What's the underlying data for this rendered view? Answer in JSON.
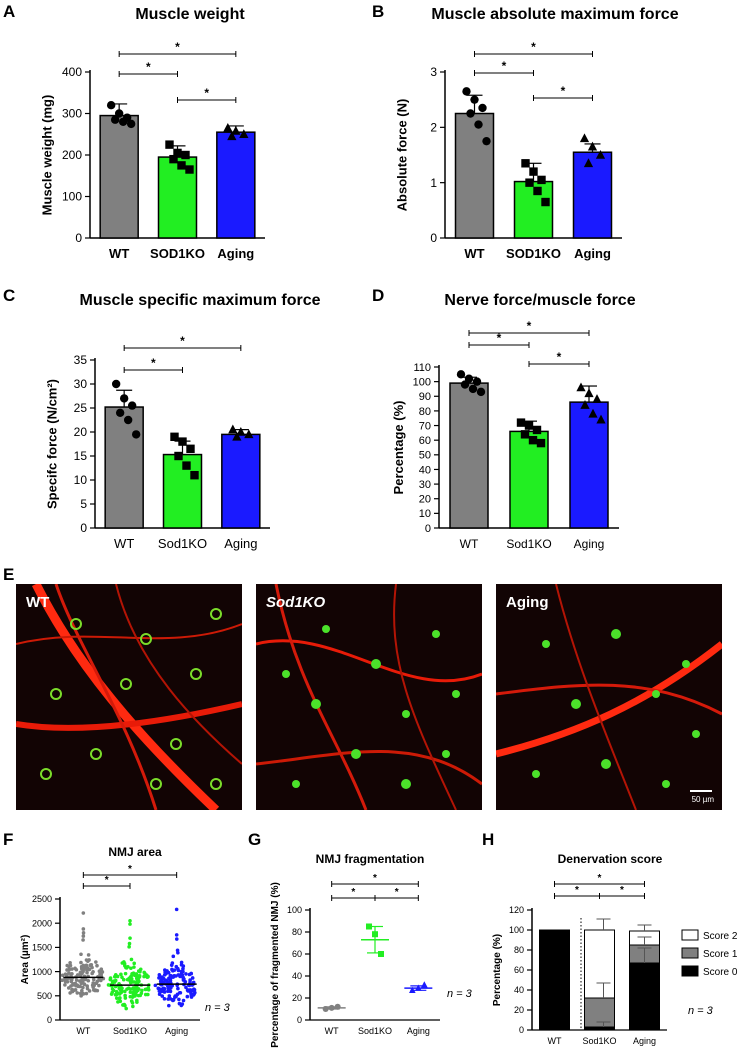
{
  "panels": {
    "A": {
      "label": "A",
      "title": "Muscle weight"
    },
    "B": {
      "label": "B",
      "title": "Muscle absolute maximum force"
    },
    "C": {
      "label": "C",
      "title": "Muscle specific maximum force"
    },
    "D": {
      "label": "D",
      "title": "Nerve force/muscle force"
    },
    "E": {
      "label": "E",
      "images": [
        {
          "label": "WT"
        },
        {
          "label": "Sod1KO"
        },
        {
          "label": "Aging"
        }
      ],
      "scale_bar": "50 µm"
    },
    "F": {
      "label": "F",
      "title": "NMJ area",
      "n": "n = 3"
    },
    "G": {
      "label": "G",
      "title": "NMJ fragmentation",
      "n": "n = 3"
    },
    "H": {
      "label": "H",
      "title": "Denervation score",
      "n": "n = 3"
    }
  },
  "colors": {
    "WT": "#808080",
    "SOD1KO": "#22ee22",
    "Aging": "#1a1aff",
    "gray_score": "#808080"
  },
  "chart_data": [
    {
      "id": "A",
      "type": "bar",
      "title": "Muscle weight",
      "categories": [
        "WT",
        "SOD1KO",
        "Aging"
      ],
      "values": [
        295,
        195,
        255
      ],
      "errors": [
        28,
        27,
        15
      ],
      "points": [
        [
          320,
          300,
          290,
          285,
          280,
          275
        ],
        [
          225,
          205,
          200,
          190,
          175,
          165
        ],
        [
          265,
          258,
          250,
          245
        ]
      ],
      "markers": [
        "circle",
        "square",
        "triangle"
      ],
      "ylabel": "Muscle weight (mg)",
      "ylim": [
        0,
        400
      ],
      "yticks": [
        0,
        100,
        200,
        300,
        400
      ],
      "sig": [
        {
          "from": 0,
          "to": 1,
          "label": "*"
        },
        {
          "from": 1,
          "to": 2,
          "label": "*"
        },
        {
          "from": 0,
          "to": 2,
          "label": "*"
        }
      ]
    },
    {
      "id": "B",
      "type": "bar",
      "title": "Muscle absolute maximum force",
      "categories": [
        "WT",
        "SOD1KO",
        "Aging"
      ],
      "values": [
        2.25,
        1.02,
        1.55
      ],
      "errors": [
        0.33,
        0.33,
        0.15
      ],
      "points": [
        [
          2.65,
          2.5,
          2.35,
          2.25,
          2.05,
          1.75
        ],
        [
          1.35,
          1.2,
          1.05,
          1.0,
          0.85,
          0.65
        ],
        [
          1.8,
          1.65,
          1.5,
          1.35
        ]
      ],
      "markers": [
        "circle",
        "square",
        "triangle"
      ],
      "ylabel": "Absolute force (N)",
      "ylim": [
        0,
        3
      ],
      "yticks": [
        0,
        1,
        2,
        3
      ],
      "sig": [
        {
          "from": 0,
          "to": 1,
          "label": "*"
        },
        {
          "from": 1,
          "to": 2,
          "label": "*"
        },
        {
          "from": 0,
          "to": 2,
          "label": "*"
        }
      ]
    },
    {
      "id": "C",
      "type": "bar",
      "title": "Muscle specific maximum force",
      "categories": [
        "WT",
        "Sod1KO",
        "Aging"
      ],
      "values": [
        25.2,
        15.3,
        19.5
      ],
      "errors": [
        3.5,
        2.8,
        1.0
      ],
      "points": [
        [
          30,
          27,
          25.5,
          24,
          22.5,
          19.5
        ],
        [
          19,
          18,
          16.5,
          15,
          13,
          11
        ],
        [
          20.5,
          20,
          19.5,
          19
        ]
      ],
      "markers": [
        "circle",
        "square",
        "triangle"
      ],
      "ylabel": "Specifc force (N/cm²)",
      "ylim": [
        0,
        35
      ],
      "yticks": [
        0,
        5,
        10,
        15,
        20,
        25,
        30,
        35
      ],
      "sig": [
        {
          "from": 0,
          "to": 1,
          "label": "*"
        },
        {
          "from": 0,
          "to": 2,
          "label": "*"
        }
      ]
    },
    {
      "id": "D",
      "type": "bar",
      "title": "Nerve force/muscle force",
      "categories": [
        "WT",
        "Sod1KO",
        "Aging"
      ],
      "values": [
        99,
        66,
        86
      ],
      "errors": [
        4,
        7,
        11
      ],
      "points": [
        [
          105,
          102,
          100,
          98,
          95,
          93
        ],
        [
          72,
          70,
          67,
          64,
          60,
          58
        ],
        [
          96,
          92,
          88,
          84,
          78,
          74
        ]
      ],
      "markers": [
        "circle",
        "square",
        "triangle"
      ],
      "ylabel": "Percentage (%)",
      "ylim": [
        0,
        110
      ],
      "yticks": [
        0,
        10,
        20,
        30,
        40,
        50,
        60,
        70,
        80,
        90,
        100,
        110
      ],
      "sig": [
        {
          "from": 0,
          "to": 1,
          "label": "*"
        },
        {
          "from": 1,
          "to": 2,
          "label": "*"
        },
        {
          "from": 0,
          "to": 2,
          "label": "*"
        }
      ]
    },
    {
      "id": "F",
      "type": "scatter",
      "title": "NMJ area",
      "categories": [
        "WT",
        "Sod1KO",
        "Aging"
      ],
      "medians": [
        880,
        720,
        740
      ],
      "ylabel": "Area (µm²)",
      "ylim": [
        0,
        2500
      ],
      "yticks": [
        0,
        500,
        1000,
        1500,
        2000,
        2500
      ],
      "sig": [
        {
          "from": 0,
          "to": 1,
          "label": "*"
        },
        {
          "from": 0,
          "to": 2,
          "label": "*"
        }
      ]
    },
    {
      "id": "G",
      "type": "scatter",
      "title": "NMJ fragmentation",
      "categories": [
        "WT",
        "Sod1KO",
        "Aging"
      ],
      "means": [
        11,
        73,
        29
      ],
      "errors": [
        1,
        12,
        2
      ],
      "points": [
        [
          10,
          11,
          12
        ],
        [
          85,
          78,
          60
        ],
        [
          27,
          29,
          32
        ]
      ],
      "markers": [
        "circle",
        "square",
        "triangle"
      ],
      "ylabel": "Percentage of fragmented NMJ (%)",
      "ylim": [
        0,
        100
      ],
      "yticks": [
        0,
        20,
        40,
        60,
        80,
        100
      ],
      "sig": [
        {
          "from": 0,
          "to": 1,
          "label": "*"
        },
        {
          "from": 1,
          "to": 2,
          "label": "*"
        },
        {
          "from": 0,
          "to": 2,
          "label": "*"
        }
      ]
    },
    {
      "id": "H",
      "type": "bar",
      "title": "Denervation score",
      "categories": [
        "WT",
        "Sod1KO",
        "Aging"
      ],
      "series": [
        {
          "name": "Score 0",
          "values": [
            100,
            3,
            67
          ]
        },
        {
          "name": "Score 1",
          "values": [
            0,
            29,
            18
          ]
        },
        {
          "name": "Score 2",
          "values": [
            0,
            68,
            14
          ]
        }
      ],
      "ylabel": "Percentage (%)",
      "ylim": [
        0,
        120
      ],
      "yticks": [
        0,
        20,
        40,
        60,
        80,
        100,
        120
      ],
      "legend": "right",
      "sig": [
        {
          "from": 0,
          "to": 1,
          "label": "*"
        },
        {
          "from": 1,
          "to": 2,
          "label": "*"
        },
        {
          "from": 0,
          "to": 2,
          "label": "*"
        }
      ]
    }
  ]
}
